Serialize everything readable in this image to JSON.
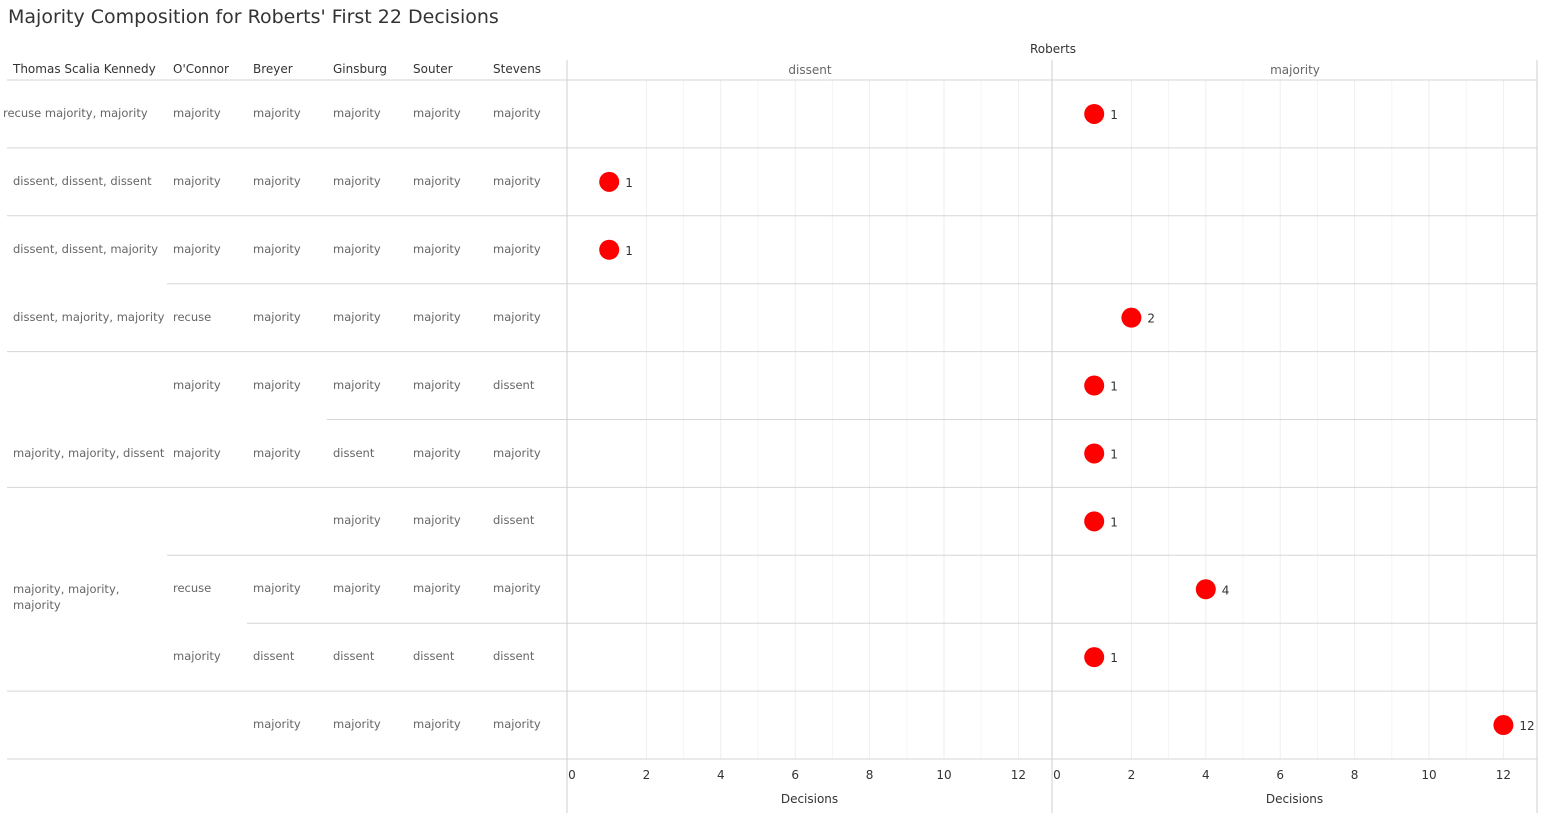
{
  "title": "Majority Composition for Roberts' First 22 Decisions",
  "superheader": "Roberts",
  "row_headers": [
    "Thomas Scalia Kennedy",
    "O'Connor",
    "Breyer",
    "Ginsburg",
    "Souter",
    "Stevens"
  ],
  "panels": [
    "dissent",
    "majority"
  ],
  "axis_label": "Decisions",
  "ticks": [
    0,
    2,
    4,
    6,
    8,
    10,
    12
  ],
  "dot_color": "#ff0000",
  "rows": [
    {
      "tsk": "recuse majority, majority",
      "oconnor": "majority",
      "breyer": "majority",
      "ginsburg": "majority",
      "souter": "majority",
      "stevens": "majority"
    },
    {
      "tsk": "dissent, dissent, dissent",
      "oconnor": "majority",
      "breyer": "majority",
      "ginsburg": "majority",
      "souter": "majority",
      "stevens": "majority"
    },
    {
      "tsk": "dissent, dissent, majority",
      "oconnor": "majority",
      "breyer": "majority",
      "ginsburg": "majority",
      "souter": "majority",
      "stevens": "majority"
    },
    {
      "tsk": "dissent, majority, majority",
      "oconnor": "recuse",
      "breyer": "majority",
      "ginsburg": "majority",
      "souter": "majority",
      "stevens": "majority"
    },
    {
      "tsk": "",
      "oconnor": "majority",
      "breyer": "majority",
      "ginsburg": "majority",
      "souter": "majority",
      "stevens": "dissent"
    },
    {
      "tsk": "majority, majority, dissent",
      "oconnor": "majority",
      "breyer": "majority",
      "ginsburg": "dissent",
      "souter": "majority",
      "stevens": "majority"
    },
    {
      "tsk": "",
      "oconnor": "",
      "breyer": "",
      "ginsburg": "majority",
      "souter": "majority",
      "stevens": "dissent"
    },
    {
      "tsk": "majority, majority, majority",
      "oconnor": "recuse",
      "breyer": "majority",
      "ginsburg": "majority",
      "souter": "majority",
      "stevens": "majority"
    },
    {
      "tsk": "",
      "oconnor": "majority",
      "breyer": "dissent",
      "ginsburg": "dissent",
      "souter": "dissent",
      "stevens": "dissent"
    },
    {
      "tsk": "",
      "oconnor": "",
      "breyer": "majority",
      "ginsburg": "majority",
      "souter": "majority",
      "stevens": "majority"
    }
  ],
  "chart_data": {
    "type": "scatter",
    "title": "Majority Composition for Roberts' First 22 Decisions",
    "xlabel": "Decisions",
    "xlim": [
      0,
      13
    ],
    "facets": [
      "dissent",
      "majority"
    ],
    "points": [
      {
        "row": 0,
        "panel": "majority",
        "value": 1
      },
      {
        "row": 1,
        "panel": "dissent",
        "value": 1
      },
      {
        "row": 2,
        "panel": "dissent",
        "value": 1
      },
      {
        "row": 3,
        "panel": "majority",
        "value": 2
      },
      {
        "row": 4,
        "panel": "majority",
        "value": 1
      },
      {
        "row": 5,
        "panel": "majority",
        "value": 1
      },
      {
        "row": 6,
        "panel": "majority",
        "value": 1
      },
      {
        "row": 7,
        "panel": "majority",
        "value": 4
      },
      {
        "row": 8,
        "panel": "majority",
        "value": 1
      },
      {
        "row": 9,
        "panel": "majority",
        "value": 12
      }
    ]
  }
}
